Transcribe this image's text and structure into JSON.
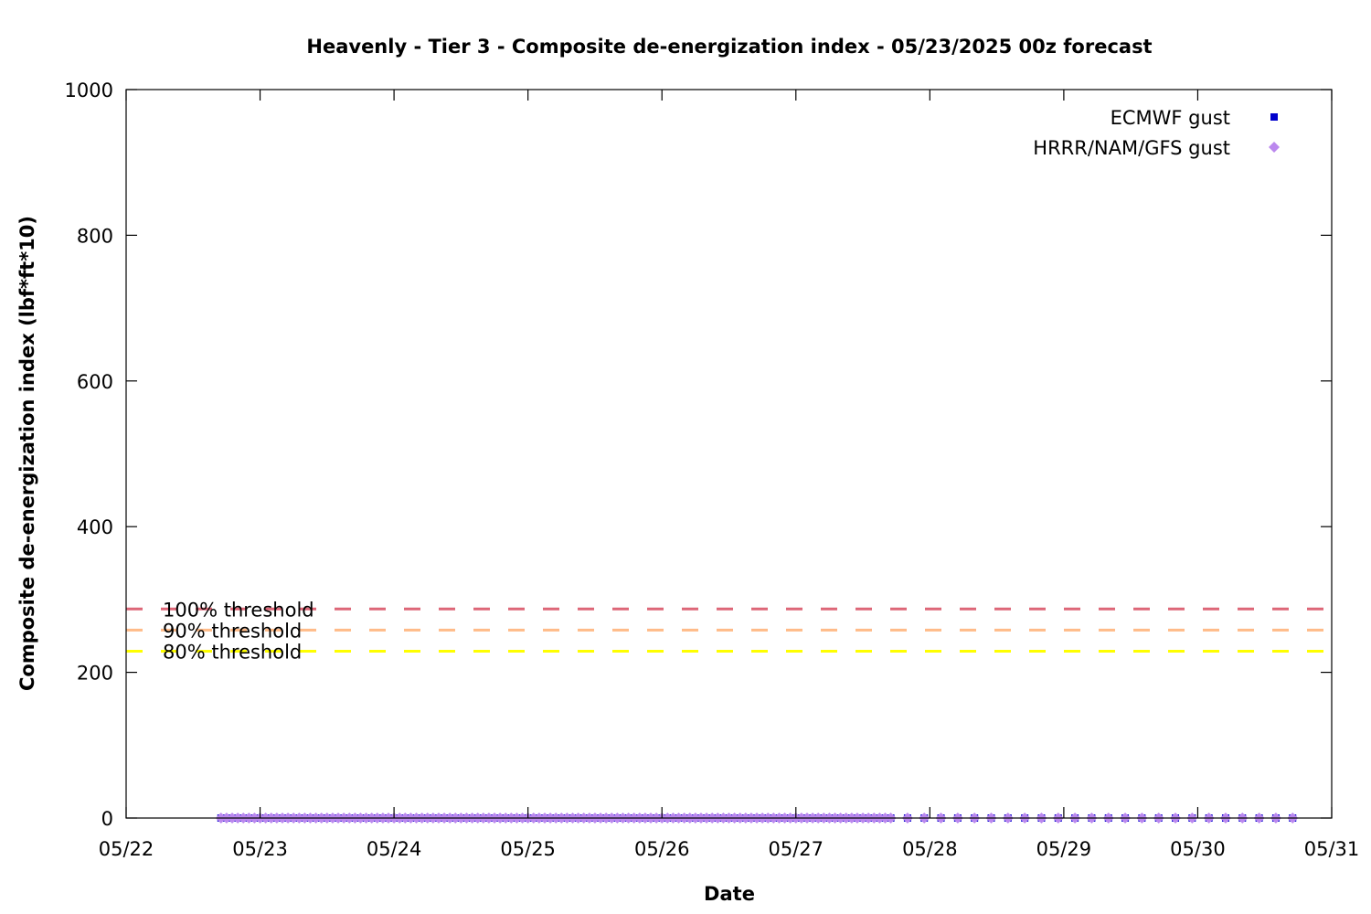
{
  "chart_data": {
    "type": "scatter",
    "title": "Heavenly - Tier 3 - Composite de-energization index - 05/23/2025 00z forecast",
    "xlabel": "Date",
    "ylabel": "Composite de-energization index (lbf*ft*10)",
    "xlim": [
      "05/22",
      "05/31"
    ],
    "ylim": [
      0,
      1000
    ],
    "x_ticks": [
      "05/22",
      "05/23",
      "05/24",
      "05/25",
      "05/26",
      "05/27",
      "05/28",
      "05/29",
      "05/30",
      "05/31"
    ],
    "y_ticks": [
      0,
      200,
      400,
      600,
      800,
      1000
    ],
    "grid": false,
    "legend_position": "top-right",
    "series": [
      {
        "name": "ECMWF gust",
        "marker": "square",
        "color": "#0000cc",
        "x_start": "05/22 17:00",
        "x_end": "05/30 17:00",
        "hourly_until": "05/27 17:00",
        "three_hourly_until": "05/30 17:00",
        "value": 0
      },
      {
        "name": "HRRR/NAM/GFS gust",
        "marker": "diamond",
        "color": "#bb88ee",
        "x_start": "05/22 17:00",
        "x_end": "05/30 17:00",
        "hourly_until": "05/27 17:00",
        "three_hourly_until": "05/30 17:00",
        "value": 0
      }
    ],
    "thresholds": [
      {
        "label": "100% threshold",
        "value": 287,
        "color": "#dd6677"
      },
      {
        "label": "90% threshold",
        "value": 258,
        "color": "#ffbb88"
      },
      {
        "label": "80% threshold",
        "value": 229,
        "color": "#ffff00"
      }
    ]
  }
}
